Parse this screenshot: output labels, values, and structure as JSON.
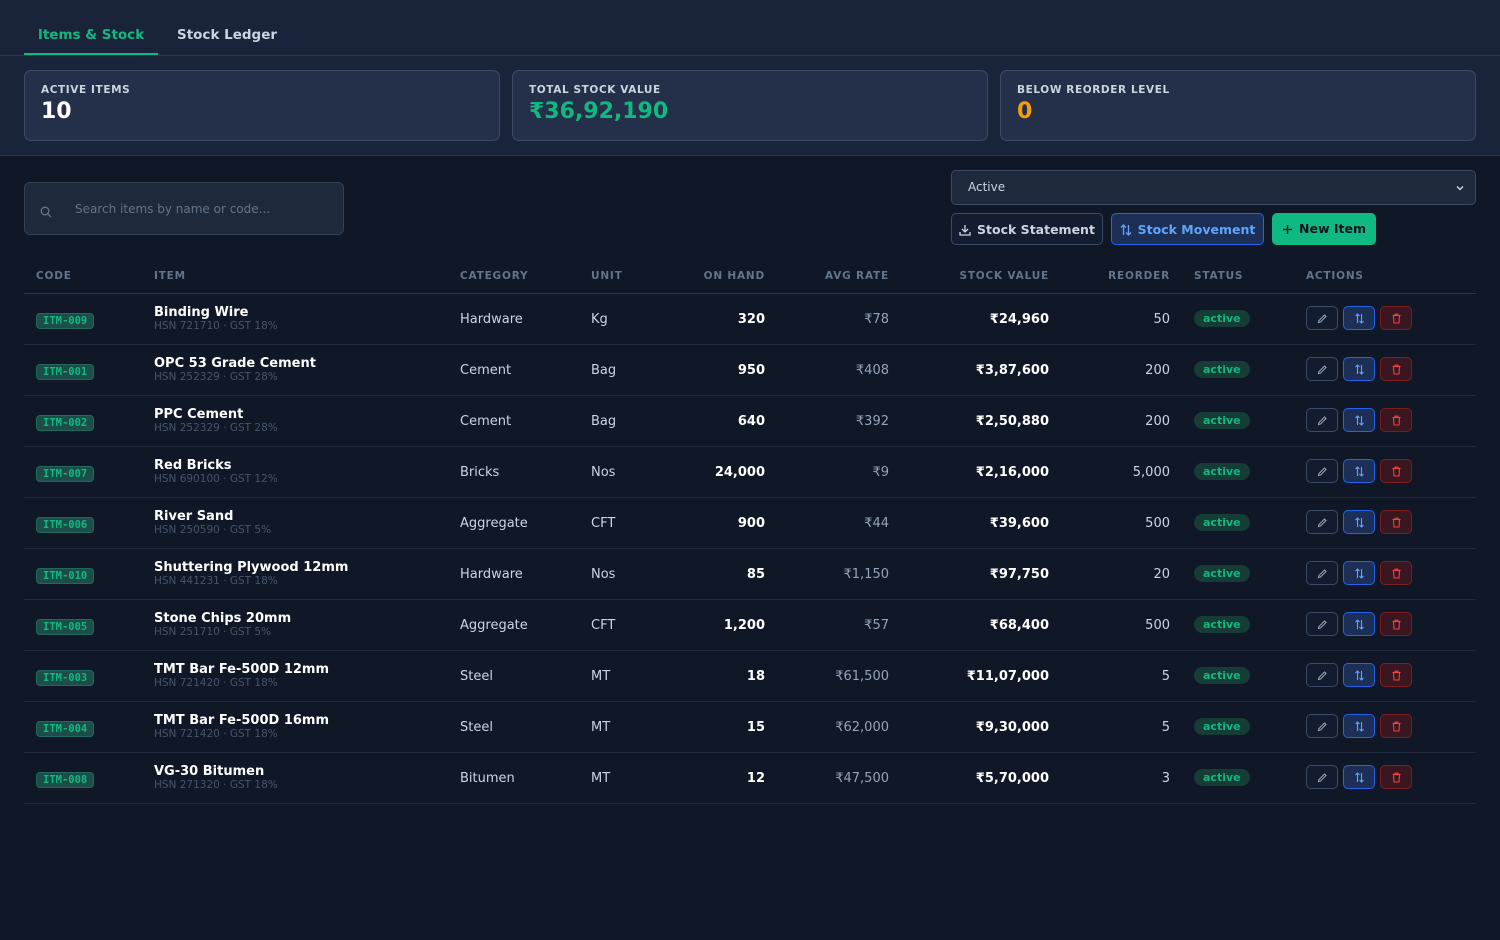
{
  "tabs": [
    "Items & Stock",
    "Stock Ledger"
  ],
  "active_tab": "Items & Stock",
  "stats": {
    "active_items": {
      "label": "ACTIVE ITEMS",
      "value": "10"
    },
    "total_stock_value": {
      "label": "TOTAL STOCK VALUE",
      "value": "₹36,92,190"
    },
    "below_reorder": {
      "label": "BELOW REORDER LEVEL",
      "value": "0"
    }
  },
  "toolbar": {
    "search_placeholder": "Search items by name or code...",
    "status_filter": "Active",
    "stock_statement_label": "Stock Statement",
    "stock_movement_label": "Stock Movement",
    "new_item_label": "New Item"
  },
  "columns": [
    "CODE",
    "ITEM",
    "CATEGORY",
    "UNIT",
    "ON HAND",
    "AVG RATE",
    "STOCK VALUE",
    "REORDER",
    "STATUS",
    "ACTIONS"
  ],
  "rows": [
    {
      "code": "ITM-009",
      "name": "Binding Wire",
      "sub": "HSN 721710 · GST 18%",
      "category": "Hardware",
      "unit": "Kg",
      "on_hand": "320",
      "avg_rate": "₹78",
      "stock_value": "₹24,960",
      "reorder": "50",
      "status": "active"
    },
    {
      "code": "ITM-001",
      "name": "OPC 53 Grade Cement",
      "sub": "HSN 252329 · GST 28%",
      "category": "Cement",
      "unit": "Bag",
      "on_hand": "950",
      "avg_rate": "₹408",
      "stock_value": "₹3,87,600",
      "reorder": "200",
      "status": "active"
    },
    {
      "code": "ITM-002",
      "name": "PPC Cement",
      "sub": "HSN 252329 · GST 28%",
      "category": "Cement",
      "unit": "Bag",
      "on_hand": "640",
      "avg_rate": "₹392",
      "stock_value": "₹2,50,880",
      "reorder": "200",
      "status": "active"
    },
    {
      "code": "ITM-007",
      "name": "Red Bricks",
      "sub": "HSN 690100 · GST 12%",
      "category": "Bricks",
      "unit": "Nos",
      "on_hand": "24,000",
      "avg_rate": "₹9",
      "stock_value": "₹2,16,000",
      "reorder": "5,000",
      "status": "active"
    },
    {
      "code": "ITM-006",
      "name": "River Sand",
      "sub": "HSN 250590 · GST 5%",
      "category": "Aggregate",
      "unit": "CFT",
      "on_hand": "900",
      "avg_rate": "₹44",
      "stock_value": "₹39,600",
      "reorder": "500",
      "status": "active"
    },
    {
      "code": "ITM-010",
      "name": "Shuttering Plywood 12mm",
      "sub": "HSN 441231 · GST 18%",
      "category": "Hardware",
      "unit": "Nos",
      "on_hand": "85",
      "avg_rate": "₹1,150",
      "stock_value": "₹97,750",
      "reorder": "20",
      "status": "active"
    },
    {
      "code": "ITM-005",
      "name": "Stone Chips 20mm",
      "sub": "HSN 251710 · GST 5%",
      "category": "Aggregate",
      "unit": "CFT",
      "on_hand": "1,200",
      "avg_rate": "₹57",
      "stock_value": "₹68,400",
      "reorder": "500",
      "status": "active"
    },
    {
      "code": "ITM-003",
      "name": "TMT Bar Fe-500D 12mm",
      "sub": "HSN 721420 · GST 18%",
      "category": "Steel",
      "unit": "MT",
      "on_hand": "18",
      "avg_rate": "₹61,500",
      "stock_value": "₹11,07,000",
      "reorder": "5",
      "status": "active"
    },
    {
      "code": "ITM-004",
      "name": "TMT Bar Fe-500D 16mm",
      "sub": "HSN 721420 · GST 18%",
      "category": "Steel",
      "unit": "MT",
      "on_hand": "15",
      "avg_rate": "₹62,000",
      "stock_value": "₹9,30,000",
      "reorder": "5",
      "status": "active"
    },
    {
      "code": "ITM-008",
      "name": "VG-30 Bitumen",
      "sub": "HSN 271320 · GST 18%",
      "category": "Bitumen",
      "unit": "MT",
      "on_hand": "12",
      "avg_rate": "₹47,500",
      "stock_value": "₹5,70,000",
      "reorder": "3",
      "status": "active"
    }
  ],
  "icons": {
    "search": "search-icon",
    "chevron": "chevron-down-icon",
    "download": "download-icon",
    "transfer": "transfer-arrows-icon",
    "plus": "plus-icon",
    "edit": "pencil-icon",
    "delete": "trash-icon"
  },
  "colors": {
    "background": "#101828",
    "panel": "#19243a",
    "accent_green": "#10b981",
    "accent_blue": "#60a5fa",
    "accent_amber": "#f59e0b",
    "danger": "#ef4444"
  }
}
